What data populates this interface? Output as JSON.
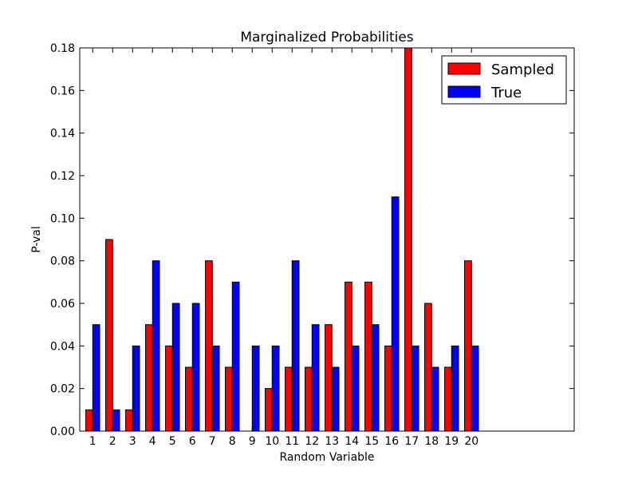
{
  "chart_data": {
    "type": "bar",
    "title": "Marginalized Probabilities",
    "xlabel": "Random Variable",
    "ylabel": "P-val",
    "categories": [
      "1",
      "2",
      "3",
      "4",
      "5",
      "6",
      "7",
      "8",
      "9",
      "10",
      "11",
      "12",
      "13",
      "14",
      "15",
      "16",
      "17",
      "18",
      "19",
      "20"
    ],
    "series": [
      {
        "name": "Sampled",
        "color": "#ff0000",
        "values": [
          0.01,
          0.09,
          0.01,
          0.05,
          0.04,
          0.03,
          0.08,
          0.03,
          0.0,
          0.02,
          0.03,
          0.03,
          0.05,
          0.07,
          0.07,
          0.04,
          0.18,
          0.06,
          0.03,
          0.08
        ]
      },
      {
        "name": "True",
        "color": "#0000ff",
        "values": [
          0.05,
          0.01,
          0.04,
          0.08,
          0.06,
          0.06,
          0.04,
          0.07,
          0.04,
          0.04,
          0.08,
          0.05,
          0.03,
          0.04,
          0.05,
          0.11,
          0.04,
          0.03,
          0.04,
          0.04
        ]
      }
    ],
    "ylim": [
      0,
      0.18
    ],
    "yticks": [
      "0.00",
      "0.02",
      "0.04",
      "0.06",
      "0.08",
      "0.10",
      "0.12",
      "0.14",
      "0.16",
      "0.18"
    ],
    "legend_position": "top-right",
    "grid": false
  }
}
